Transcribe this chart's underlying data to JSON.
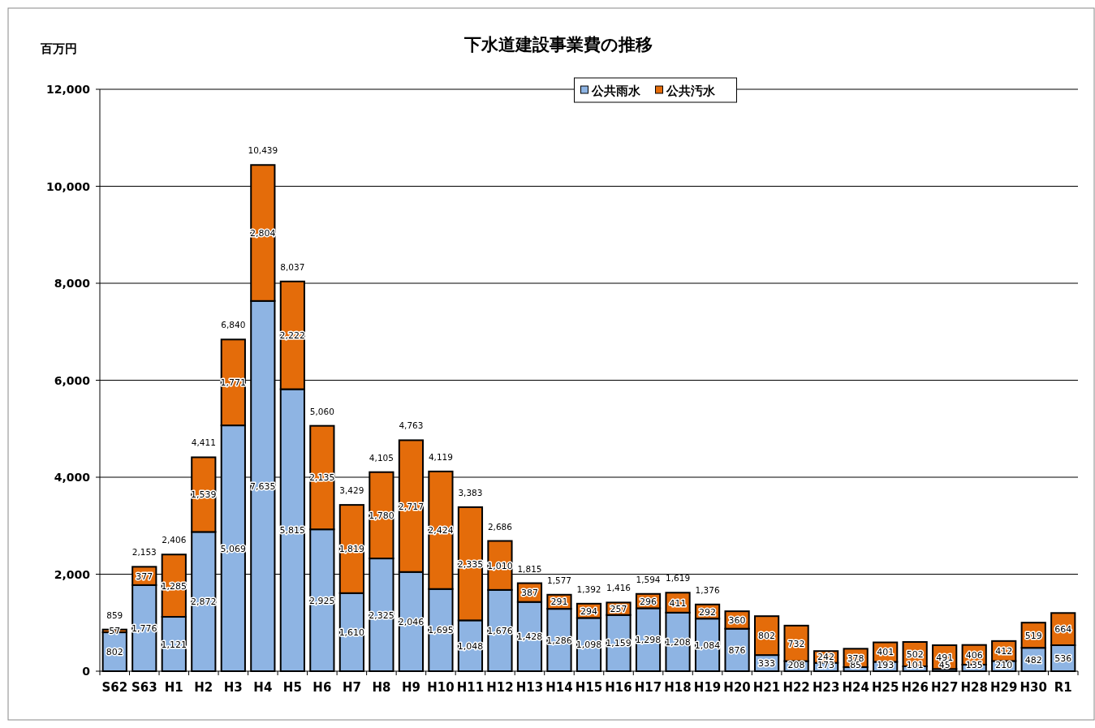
{
  "chart_data": {
    "type": "bar",
    "title": "下水道建設事業費の推移",
    "ylabel": "百万円",
    "categories": [
      "S62",
      "S63",
      "H1",
      "H2",
      "H3",
      "H4",
      "H5",
      "H6",
      "H7",
      "H8",
      "H9",
      "H10",
      "H11",
      "H12",
      "H13",
      "H14",
      "H15",
      "H16",
      "H17",
      "H18",
      "H19",
      "H20",
      "H21",
      "H22",
      "H23",
      "H24",
      "H25",
      "H26",
      "H27",
      "H28",
      "H29",
      "H30",
      "R1"
    ],
    "series": [
      {
        "name": "公共雨水",
        "color": "#8eb4e3",
        "values": [
          802,
          1776,
          1121,
          2872,
          5069,
          7635,
          5815,
          2925,
          1610,
          2325,
          2046,
          1695,
          1048,
          1676,
          1428,
          1286,
          1098,
          1159,
          1298,
          1208,
          1084,
          876,
          333,
          208,
          173,
          85,
          193,
          101,
          45,
          135,
          210,
          482,
          536
        ],
        "value_labels": [
          "802",
          "1,776",
          "1,121",
          "2,872",
          "5,069",
          "7,635",
          "5,815",
          "2,925",
          "1,610",
          "2,325",
          "2,046",
          "1,695",
          "1,048",
          "1,676",
          "1,428",
          "1,286",
          "1,098",
          "1,159",
          "1,298",
          "1,208",
          "1,084",
          "876",
          "333",
          "208",
          "173",
          "85",
          "193",
          "101",
          "45",
          "135",
          "210",
          "482",
          "536"
        ]
      },
      {
        "name": "公共汚水",
        "color": "#e46c0a",
        "values": [
          57,
          377,
          1285,
          1539,
          1771,
          2804,
          2222,
          2135,
          1819,
          1780,
          2717,
          2424,
          2335,
          1010,
          387,
          291,
          294,
          257,
          296,
          411,
          292,
          360,
          802,
          732,
          242,
          378,
          401,
          502,
          491,
          406,
          412,
          519,
          664
        ],
        "value_labels": [
          "57",
          "377",
          "1,285",
          "1,539",
          "1,771",
          "2,804",
          "2,222",
          "2,135",
          "1,819",
          "1,780",
          "2,717",
          "2,424",
          "2,335",
          "1,010",
          "387",
          "291",
          "294",
          "257",
          "296",
          "411",
          "292",
          "360",
          "802",
          "732",
          "242",
          "378",
          "401",
          "502",
          "491",
          "406",
          "412",
          "519",
          "664"
        ]
      }
    ],
    "stacked": true,
    "totals": [
      "859",
      "2,153",
      "2,406",
      "4,411",
      "6,840",
      "10,439",
      "8,037",
      "5,060",
      "3,429",
      "4,105",
      "4,763",
      "4,119",
      "3,383",
      "2,686",
      "1,815",
      "1,577",
      "1,392",
      "1,416",
      "1,594",
      "1,619",
      "1,376",
      null,
      null,
      null,
      null,
      null,
      null,
      null,
      null,
      null,
      null,
      null,
      null
    ],
    "ylim": [
      0,
      12000
    ],
    "yticks": [
      0,
      {
        "value": 2000,
        "label": "2,000"
      },
      {
        "value": 4000,
        "label": "4,000"
      },
      {
        "value": 6000,
        "label": "6,000"
      },
      {
        "value": 8000,
        "label": "8,000"
      },
      {
        "value": 10000,
        "label": "10,000"
      },
      {
        "value": 12000,
        "label": "12,000"
      }
    ],
    "grid": "y",
    "legend": "top"
  }
}
